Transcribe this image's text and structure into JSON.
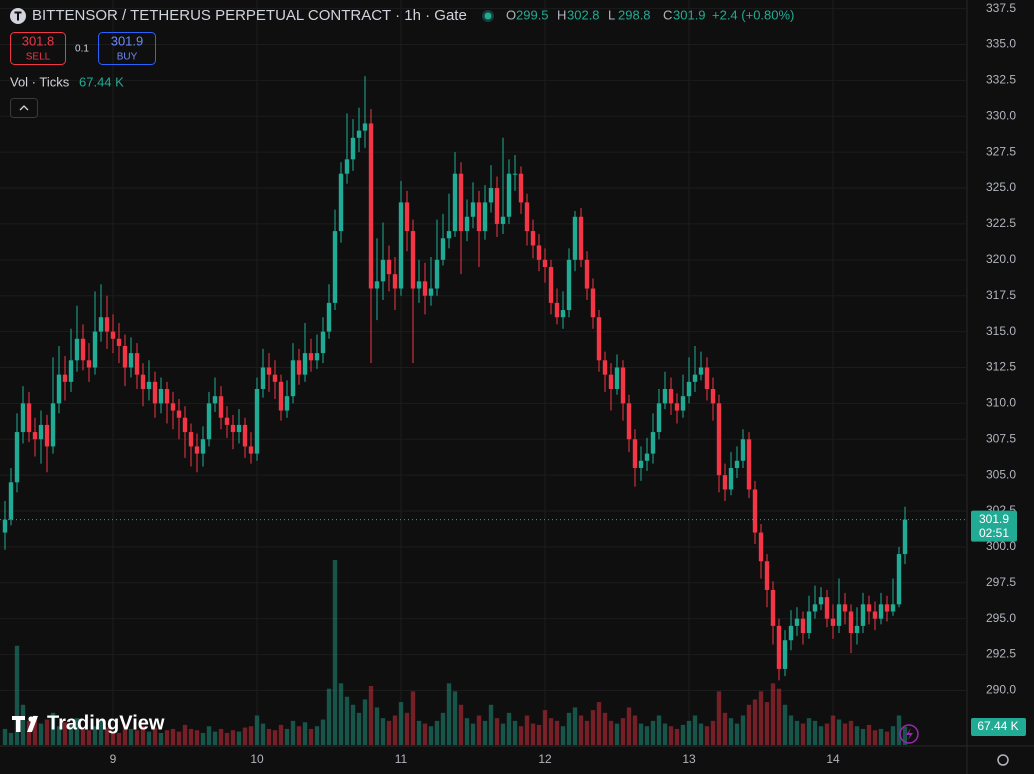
{
  "header": {
    "symbol": "BITTENSOR / TETHERUS PERPETUAL CONTRACT · 1h · Gate",
    "ohlc": [
      {
        "key": "O",
        "value": 299.5
      },
      {
        "key": "H",
        "value": 302.8
      },
      {
        "key": "L",
        "value": 298.8
      },
      {
        "key": "C",
        "value": 301.9
      }
    ],
    "change": "+2.4 (+0.80%)"
  },
  "order_panel": {
    "sell_price": 301.8,
    "sell_label": "SELL",
    "spread": 0.1,
    "buy_price": 301.9,
    "buy_label": "BUY"
  },
  "indicator": {
    "name": "Vol · Ticks",
    "value": "67.44 K"
  },
  "watermark": "TradingView",
  "chart_data": {
    "type": "candlestick",
    "up_color": "#22ab94",
    "down_color": "#f23645",
    "ylim": [
      286.2,
      338.1
    ],
    "yticks": [
      {
        "value": 290,
        "label": "290.0"
      },
      292.5,
      {
        "value": 295,
        "label": "295.0"
      },
      297.5,
      {
        "value": 300,
        "label": "300.0"
      },
      302.5,
      {
        "value": 305,
        "label": "305.0"
      },
      307.5,
      {
        "value": 310,
        "label": "310.0"
      },
      312.5,
      {
        "value": 315,
        "label": "315.0"
      },
      317.5,
      {
        "value": 320,
        "label": "320.0"
      },
      322.5,
      {
        "value": 325,
        "label": "325.0"
      },
      327.5,
      {
        "value": 330,
        "label": "330.0"
      },
      332.5,
      {
        "value": 335,
        "label": "335.0"
      },
      337.5
    ],
    "grid": true,
    "last_price": 301.9,
    "countdown": "02:51",
    "volume_label": "67.44 K",
    "categories": [
      null,
      null,
      null,
      null,
      null,
      null,
      null,
      null,
      null,
      null,
      null,
      null,
      null,
      null,
      null,
      null,
      null,
      null,
      "9",
      null,
      null,
      null,
      null,
      null,
      null,
      null,
      null,
      null,
      null,
      null,
      null,
      null,
      null,
      null,
      null,
      null,
      null,
      null,
      null,
      null,
      null,
      null,
      "10",
      null,
      null,
      null,
      null,
      null,
      null,
      null,
      null,
      null,
      null,
      null,
      null,
      null,
      null,
      null,
      null,
      null,
      null,
      null,
      null,
      null,
      null,
      null,
      "11",
      null,
      null,
      null,
      null,
      null,
      null,
      null,
      null,
      null,
      null,
      null,
      null,
      null,
      null,
      null,
      null,
      null,
      null,
      null,
      null,
      null,
      null,
      null,
      "12",
      null,
      null,
      null,
      null,
      null,
      null,
      null,
      null,
      null,
      null,
      null,
      null,
      null,
      null,
      null,
      null,
      null,
      null,
      null,
      null,
      null,
      null,
      null,
      "13",
      null,
      null,
      null,
      null,
      null,
      null,
      null,
      null,
      null,
      null,
      null,
      null,
      null,
      null,
      null,
      null,
      null,
      null,
      null,
      null,
      null,
      null,
      null,
      "14",
      null,
      null,
      null,
      null,
      null,
      null,
      null,
      null,
      null,
      null,
      null,
      null
    ],
    "open": [
      301.0,
      301.9,
      304.5,
      308,
      310,
      308,
      307.5,
      308.5,
      307,
      310,
      312,
      311.5,
      313,
      314.5,
      313,
      312.5,
      315,
      316,
      315,
      314.5,
      314,
      312.5,
      313.5,
      312,
      311,
      311.5,
      310,
      311,
      310,
      309.5,
      309,
      308,
      307,
      306.5,
      307.5,
      310,
      310.5,
      309,
      308.5,
      308,
      308.5,
      307,
      306.5,
      311,
      312.5,
      312,
      311.5,
      309.5,
      310.5,
      313,
      312,
      313.5,
      313,
      313.5,
      315,
      317,
      322,
      326,
      327,
      328.5,
      329,
      329.5,
      318,
      318.5,
      320,
      319,
      318,
      324,
      322,
      318,
      318.5,
      317.5,
      318,
      320,
      321.5,
      322,
      326,
      322,
      323,
      324,
      322,
      324,
      325,
      322.5,
      323,
      326,
      326,
      324,
      322,
      321,
      320,
      319.5,
      317,
      316,
      316.5,
      320,
      323,
      320,
      318,
      316,
      313,
      312,
      311,
      312.5,
      310,
      307.5,
      305.5,
      306,
      306.5,
      308,
      310,
      311,
      310,
      309.5,
      310.5,
      311.5,
      312,
      312.5,
      311,
      310,
      305,
      304,
      305.5,
      306,
      307.5,
      304,
      301,
      299,
      297,
      294.5,
      291.5,
      293.5,
      294.5,
      295,
      294,
      295.5,
      296,
      296.5,
      295,
      294.5,
      296,
      295.5,
      294,
      294.5,
      296,
      295.5,
      295,
      296,
      295.5,
      296,
      299.5
    ],
    "high": [
      303.2,
      305.5,
      309.3,
      311.2,
      310.8,
      309,
      309.5,
      309.2,
      313.2,
      314,
      313.3,
      315.2,
      316.8,
      315.5,
      314.2,
      317.8,
      318.3,
      317.5,
      316.2,
      315.6,
      314.8,
      314.6,
      314.2,
      312.8,
      313,
      312.2,
      311.8,
      311.5,
      310.8,
      310.3,
      309.8,
      308.6,
      307.9,
      308.4,
      310.8,
      311.8,
      311.2,
      309.8,
      309.2,
      309.6,
      309,
      308,
      311.8,
      313.8,
      313.5,
      313,
      312,
      311.6,
      314.2,
      313.8,
      315.6,
      314.5,
      314.8,
      316,
      318.3,
      323.5,
      326.8,
      330.2,
      329.8,
      330.6,
      332.8,
      330.5,
      321.5,
      322.6,
      321,
      320.2,
      325.5,
      324.8,
      322.8,
      320,
      319.8,
      320.2,
      322.8,
      323.2,
      324.6,
      327.5,
      326.8,
      324.2,
      325.4,
      324.8,
      325.2,
      326.6,
      325.8,
      328.5,
      327,
      327.3,
      326.5,
      324.6,
      322.8,
      321.8,
      320.8,
      320,
      318,
      317.8,
      320.8,
      323.4,
      323.6,
      320.6,
      318.7,
      316.5,
      313.6,
      312.8,
      313.4,
      313,
      310.6,
      308.2,
      307,
      307.6,
      309.3,
      311,
      312.2,
      311.8,
      310.7,
      312,
      313.2,
      314,
      313.6,
      313.2,
      311.8,
      310.6,
      305.8,
      306.6,
      307,
      308.2,
      308,
      304.6,
      301.6,
      299.5,
      297.6,
      295,
      294.2,
      295.6,
      295.8,
      295.5,
      296.6,
      297.3,
      297.2,
      297,
      296,
      297.8,
      296.8,
      296,
      295.8,
      296.8,
      296.6,
      296.2,
      296.8,
      296.6,
      297.8,
      300,
      302.8
    ],
    "low": [
      299.8,
      301.5,
      303.8,
      307.2,
      307.3,
      306.3,
      305.8,
      305.2,
      306.5,
      309.3,
      310.2,
      310.8,
      312.2,
      312.3,
      311.5,
      312,
      314.3,
      313.8,
      313.5,
      312.8,
      311.2,
      311.8,
      311,
      309.8,
      310.2,
      309,
      309.3,
      308.6,
      308.2,
      307.5,
      306.2,
      305.6,
      305.2,
      305.6,
      307,
      309.4,
      308.2,
      307.6,
      306.8,
      307.2,
      306.2,
      305.8,
      306,
      310.4,
      310.8,
      310.3,
      308.8,
      309,
      310,
      311.3,
      311.5,
      312.2,
      312.4,
      312.8,
      314.5,
      316.5,
      321.2,
      325.3,
      326.2,
      327.5,
      327.8,
      312.8,
      315.8,
      317.2,
      317.8,
      316.5,
      317.5,
      320.6,
      312.8,
      317,
      316.2,
      316.8,
      317.5,
      319.6,
      320.8,
      321.6,
      319,
      321.3,
      322.2,
      319.5,
      321.4,
      323.3,
      321.6,
      321.8,
      322.5,
      324.8,
      323.2,
      321,
      320.1,
      319.2,
      318.4,
      316.2,
      315.5,
      315.2,
      316,
      319.2,
      319.5,
      317.2,
      315.2,
      312.2,
      310.8,
      309.5,
      310.6,
      308.8,
      306.6,
      304.2,
      304.6,
      305.3,
      305.8,
      307.5,
      309.6,
      309.2,
      308.6,
      309,
      310,
      310.8,
      311.6,
      310.2,
      308.8,
      303.8,
      303.2,
      303.6,
      304.8,
      305.5,
      303.4,
      300.2,
      297.8,
      295.8,
      293.2,
      290.7,
      291,
      292.8,
      293.8,
      293.2,
      293.6,
      295,
      295.6,
      294.4,
      293.6,
      294,
      294.6,
      292.6,
      293.2,
      294,
      294.6,
      294.2,
      294.6,
      294.8,
      295.2,
      295.8,
      298.8
    ],
    "close": [
      301.9,
      304.5,
      308,
      310,
      308,
      307.5,
      308.5,
      307,
      310,
      312,
      311.5,
      313,
      314.5,
      313,
      312.5,
      315,
      316,
      315,
      314.5,
      314,
      312.5,
      313.5,
      312,
      311,
      311.5,
      310,
      311,
      310,
      309.5,
      309,
      308,
      307,
      306.5,
      307.5,
      310,
      310.5,
      309,
      308.5,
      308,
      308.5,
      307,
      306.5,
      311,
      312.5,
      312,
      311.5,
      309.5,
      310.5,
      313,
      312,
      313.5,
      313,
      313.5,
      315,
      317,
      322,
      326,
      327,
      328.5,
      329,
      329.5,
      318,
      318.5,
      320,
      319,
      318,
      324,
      322,
      318,
      318.5,
      317.5,
      318,
      320,
      321.5,
      322,
      326,
      322,
      323,
      324,
      322,
      324,
      325,
      322.5,
      323,
      326,
      326,
      324,
      322,
      321,
      320,
      319.5,
      317,
      316,
      316.5,
      320,
      323,
      320,
      318,
      316,
      313,
      312,
      311,
      312.5,
      310,
      307.5,
      305.5,
      306,
      306.5,
      308,
      310,
      311,
      310,
      309.5,
      310.5,
      311.5,
      312,
      312.5,
      311,
      310,
      305,
      304,
      305.5,
      306,
      307.5,
      304,
      301,
      299,
      297,
      294.5,
      291.5,
      293.5,
      294.5,
      295,
      294,
      295.5,
      296,
      296.5,
      295,
      294.5,
      296,
      295.5,
      294,
      294.5,
      296,
      295.5,
      295,
      296,
      295.5,
      296,
      299.5,
      301.9
    ],
    "volume": [
      60,
      45,
      370,
      150,
      90,
      110,
      80,
      95,
      120,
      70,
      85,
      75,
      100,
      60,
      55,
      70,
      90,
      65,
      50,
      45,
      80,
      60,
      55,
      70,
      50,
      65,
      45,
      55,
      60,
      50,
      75,
      60,
      55,
      45,
      70,
      50,
      60,
      45,
      55,
      50,
      65,
      70,
      110,
      80,
      60,
      55,
      75,
      60,
      90,
      70,
      85,
      60,
      70,
      95,
      210,
      690,
      230,
      180,
      150,
      120,
      170,
      220,
      140,
      100,
      90,
      110,
      160,
      120,
      200,
      90,
      80,
      70,
      90,
      120,
      230,
      200,
      150,
      100,
      80,
      110,
      90,
      150,
      100,
      80,
      120,
      90,
      70,
      110,
      80,
      75,
      130,
      100,
      90,
      70,
      120,
      140,
      110,
      90,
      130,
      160,
      120,
      90,
      80,
      100,
      140,
      110,
      80,
      70,
      90,
      110,
      80,
      70,
      60,
      75,
      90,
      110,
      80,
      70,
      90,
      200,
      120,
      100,
      80,
      110,
      150,
      170,
      200,
      160,
      230,
      210,
      150,
      110,
      90,
      80,
      100,
      90,
      70,
      80,
      110,
      95,
      80,
      90,
      70,
      60,
      75,
      55,
      60,
      50,
      70,
      110,
      67.44
    ]
  }
}
